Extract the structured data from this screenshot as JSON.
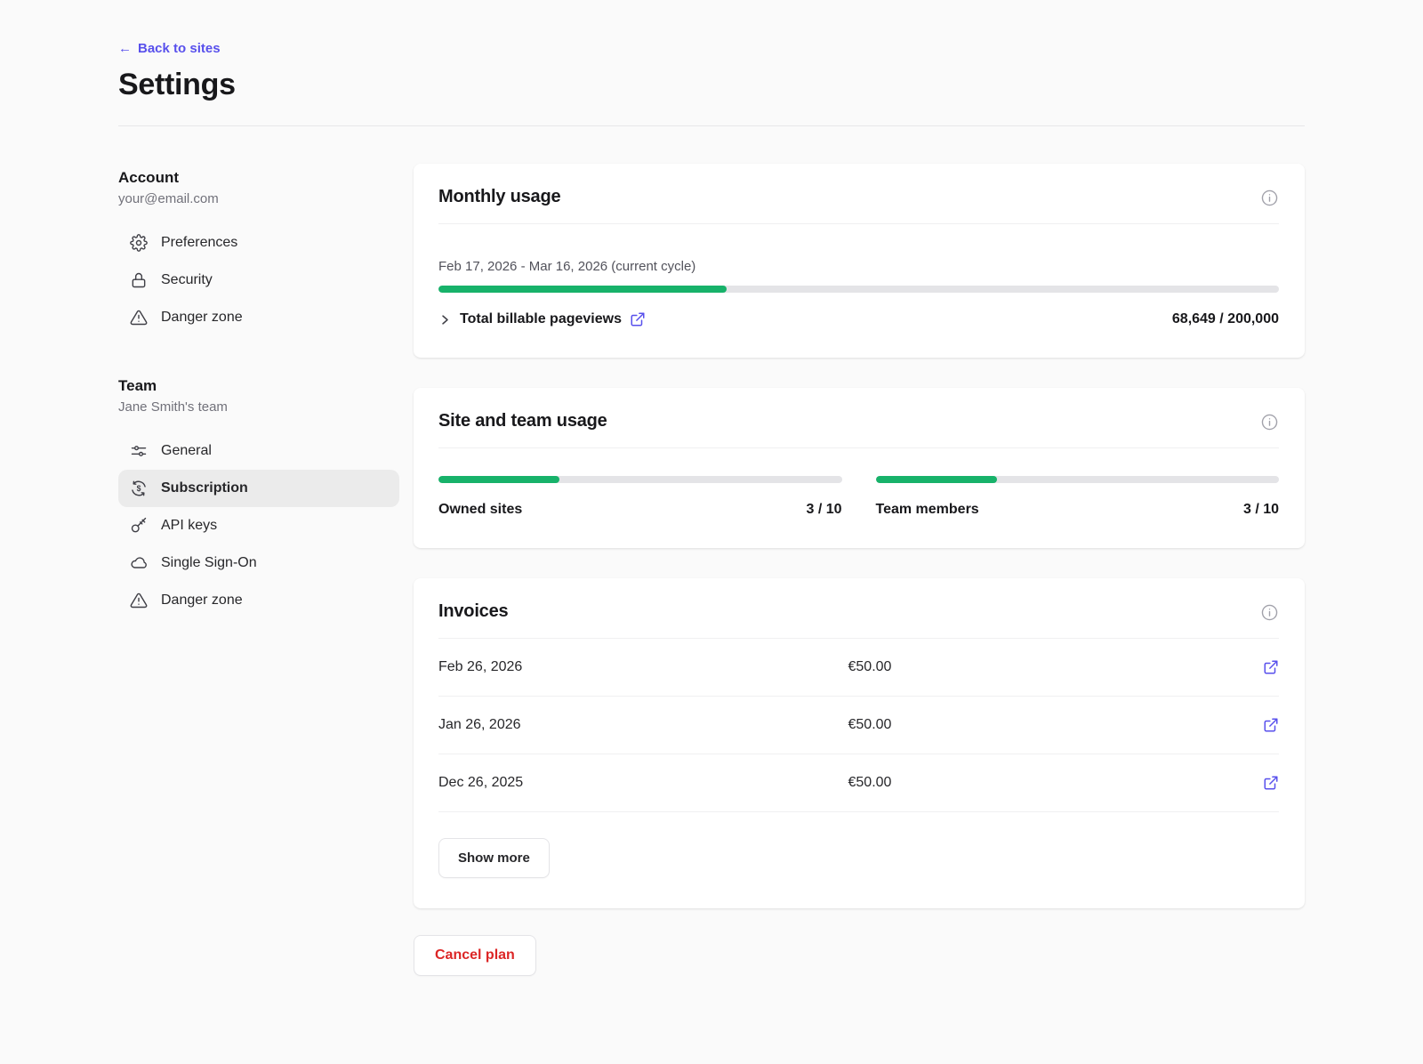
{
  "colors": {
    "accent_purple": "#5850ec",
    "progress_green": "#17b26a",
    "danger_red": "#dc2626",
    "page_background": "#fafafa"
  },
  "header": {
    "back_arrow": "←",
    "back_label": "Back to sites",
    "title": "Settings"
  },
  "sidebar": {
    "account": {
      "title": "Account",
      "subtitle": "your@email.com",
      "items": [
        {
          "label": "Preferences",
          "icon": "gear-icon"
        },
        {
          "label": "Security",
          "icon": "lock-icon"
        },
        {
          "label": "Danger zone",
          "icon": "warning-triangle-icon"
        }
      ]
    },
    "team": {
      "title": "Team",
      "subtitle": "Jane Smith's team",
      "items": [
        {
          "label": "General",
          "icon": "sliders-icon"
        },
        {
          "label": "Subscription",
          "icon": "currency-refresh-icon",
          "selected": true
        },
        {
          "label": "API keys",
          "icon": "key-icon"
        },
        {
          "label": "Single Sign-On",
          "icon": "cloud-icon"
        },
        {
          "label": "Danger zone",
          "icon": "warning-triangle-icon"
        }
      ]
    }
  },
  "monthly_usage": {
    "title": "Monthly usage",
    "cycle_label": "Feb 17, 2026 - Mar 16, 2026 (current cycle)",
    "progress_percent": 34.3,
    "row_label": "Total billable pageviews",
    "row_value": "68,649 / 200,000"
  },
  "site_team_usage": {
    "title": "Site and team usage",
    "meters": [
      {
        "label": "Owned sites",
        "value": "3 / 10",
        "percent": 30
      },
      {
        "label": "Team members",
        "value": "3 / 10",
        "percent": 30
      }
    ]
  },
  "invoices": {
    "title": "Invoices",
    "rows": [
      {
        "date": "Feb 26, 2026",
        "amount": "€50.00"
      },
      {
        "date": "Jan 26, 2026",
        "amount": "€50.00"
      },
      {
        "date": "Dec 26, 2025",
        "amount": "€50.00"
      }
    ],
    "show_more_label": "Show more"
  },
  "actions": {
    "cancel_plan_label": "Cancel plan"
  }
}
